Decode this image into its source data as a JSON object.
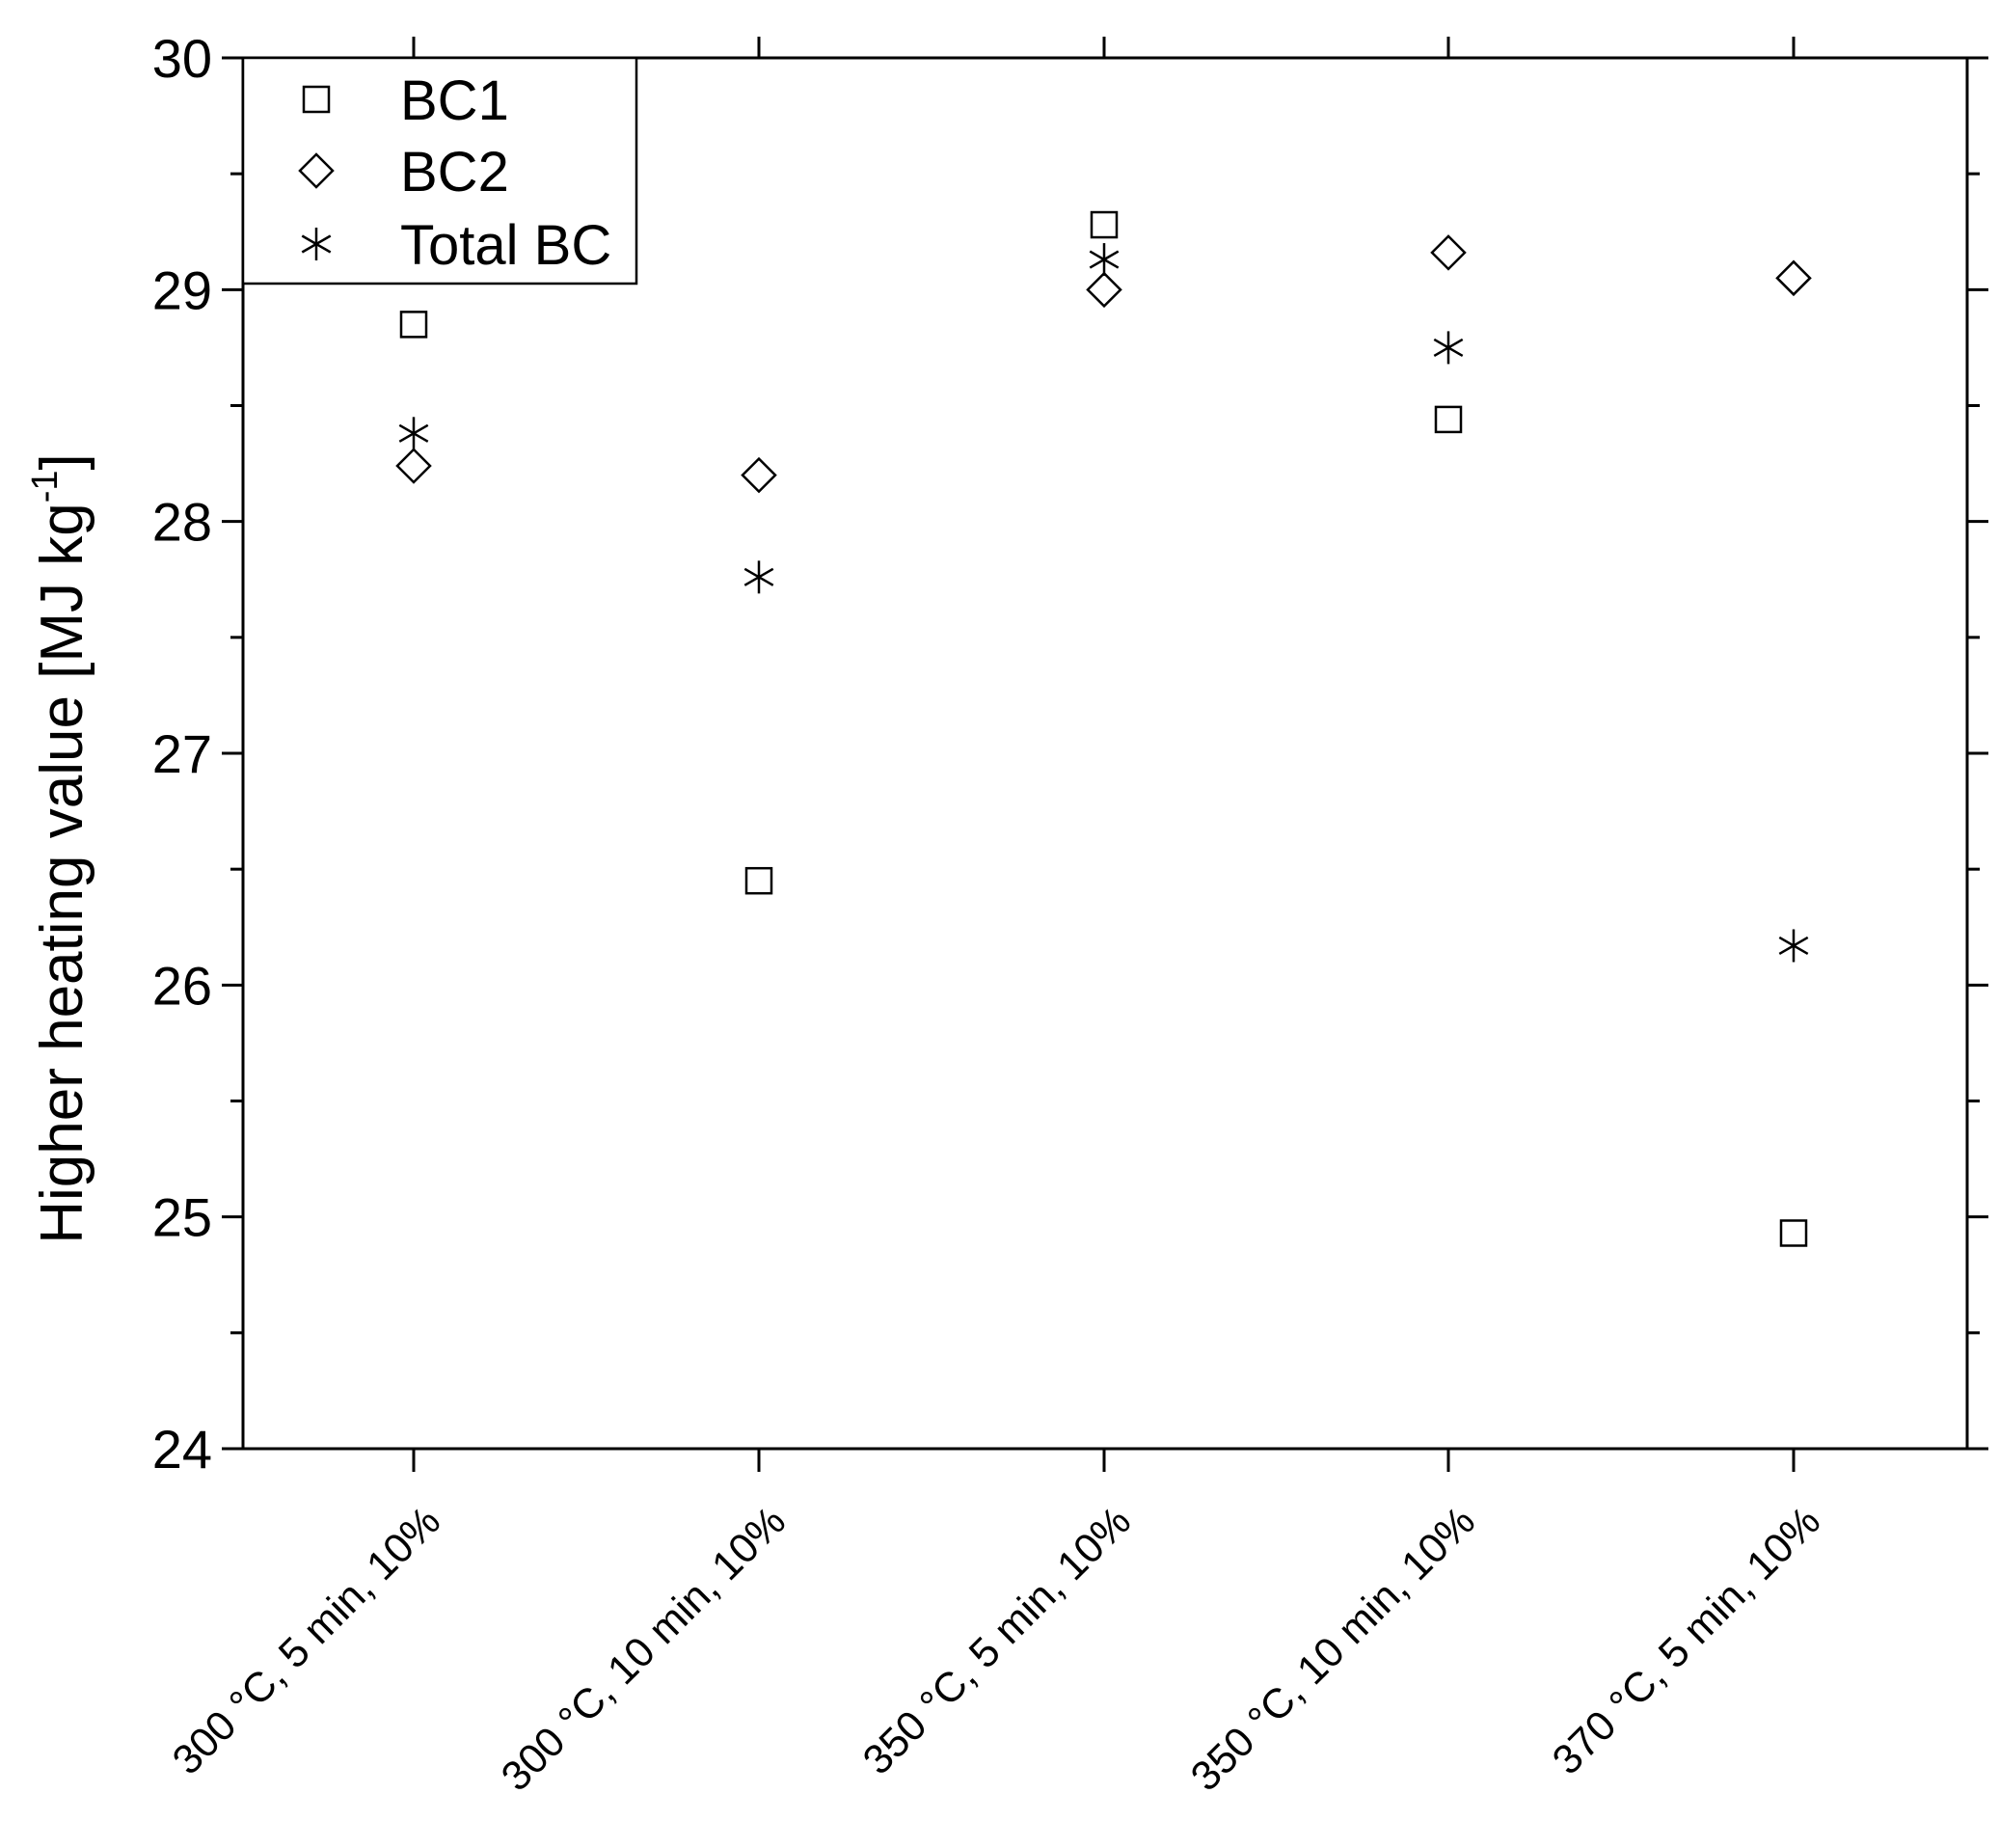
{
  "chart_data": {
    "type": "scatter",
    "ylabel": "Higher heating value [MJ kg",
    "ylabel_sup": "-1",
    "ylabel_close": "]",
    "ylim": [
      24,
      30
    ],
    "y_ticks": [
      24,
      25,
      26,
      27,
      28,
      29,
      30
    ],
    "y_tick_labels": [
      "24",
      "25",
      "26",
      "27",
      "28",
      "29",
      "30"
    ],
    "categories": [
      "300 °C, 5 min, 10%",
      "300 °C, 10 min, 10%",
      "350 °C, 5 min, 10%",
      "350 °C, 10 min, 10%",
      "370 °C, 5 min, 10%"
    ],
    "series": [
      {
        "name": "BC1",
        "marker": "square",
        "values": [
          28.85,
          26.45,
          29.28,
          28.44,
          24.93
        ]
      },
      {
        "name": "BC2",
        "marker": "diamond",
        "values": [
          28.24,
          28.2,
          29.0,
          29.16,
          29.05
        ]
      },
      {
        "name": "Total BC",
        "marker": "asterisk",
        "values": [
          28.38,
          27.76,
          29.13,
          28.75,
          26.17
        ]
      }
    ],
    "legend_position": "top-left",
    "grid": false
  }
}
